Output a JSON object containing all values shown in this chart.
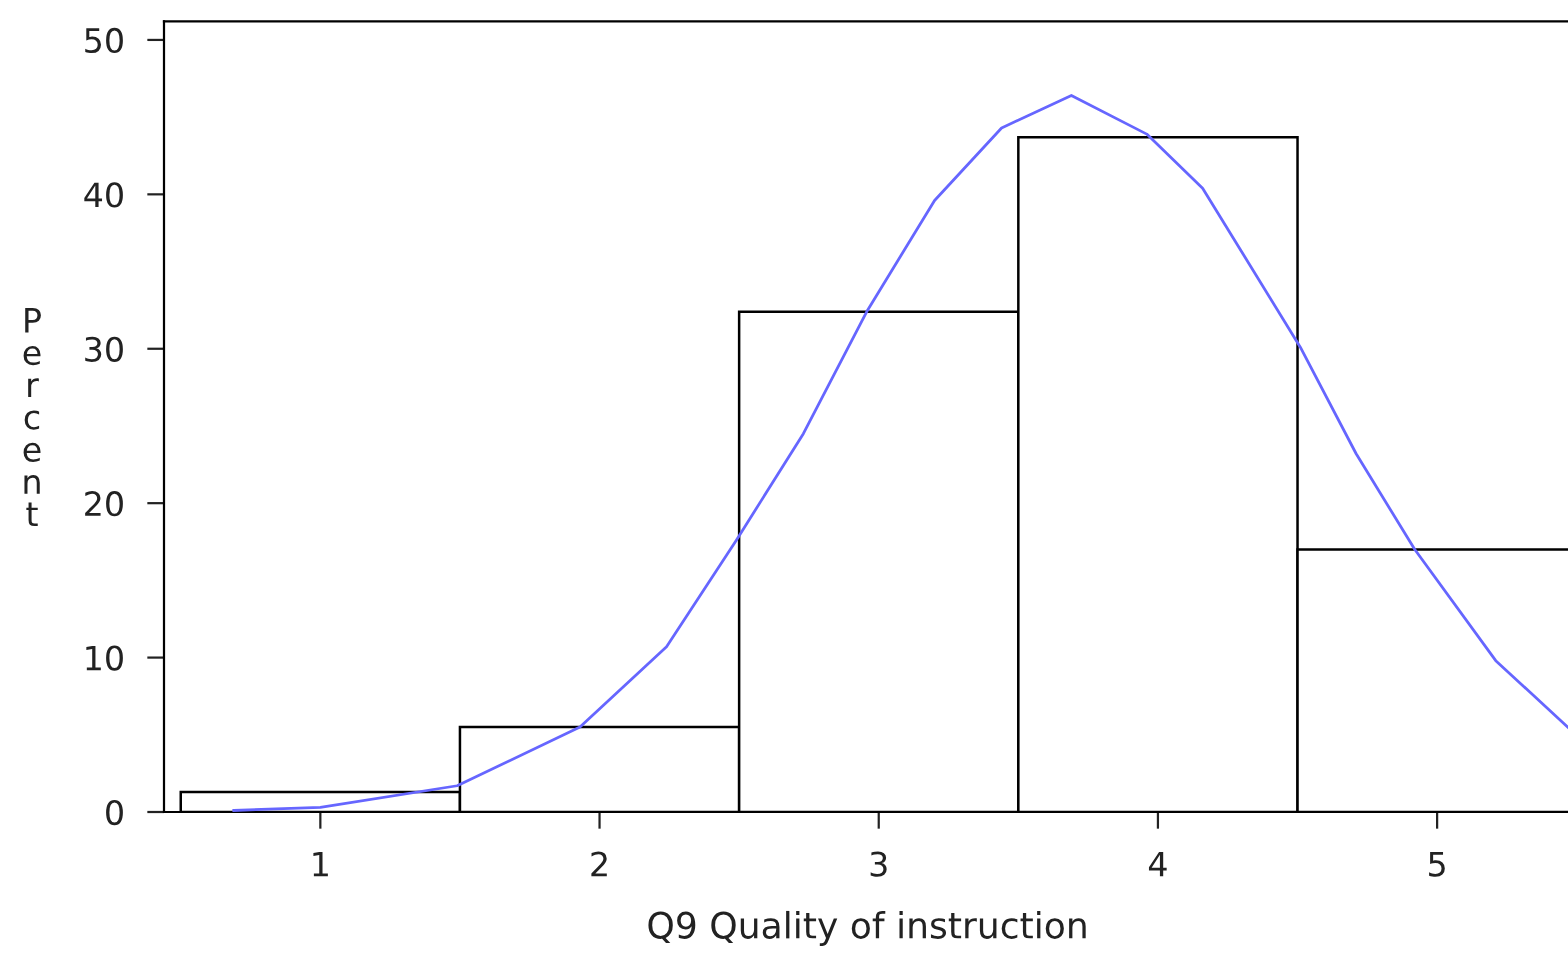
{
  "chart_data": {
    "type": "histogram",
    "xlabel": "Q9 Quality of instruction",
    "ylabel": "Percent",
    "bins": [
      0.5,
      1.5,
      2.5,
      3.5,
      4.5,
      5.5
    ],
    "values": [
      1.3,
      5.5,
      32.4,
      43.7,
      17.0
    ],
    "color": "#ffffff",
    "series": [
      {
        "type": "line",
        "color": "#6666ff",
        "x": [
          0.69,
          1.0,
          1.49,
          1.93,
          2.24,
          2.49,
          2.73,
          2.96,
          3.2,
          3.44,
          3.69,
          3.96,
          4.16,
          4.51,
          4.71,
          4.92,
          5.21,
          5.48
        ],
        "values": [
          0.1,
          0.3,
          1.7,
          5.5,
          10.7,
          17.6,
          24.5,
          32.5,
          39.6,
          44.3,
          46.4,
          43.9,
          40.4,
          30.1,
          23.2,
          17.0,
          9.8,
          5.3
        ]
      }
    ],
    "xlim": [
      0.44,
      5.48
    ],
    "ylim": [
      0,
      51.2
    ],
    "xticks": [
      1,
      2,
      3,
      4,
      5
    ],
    "yticks": [
      0,
      10,
      20,
      30,
      40,
      50
    ],
    "grid": false,
    "legend": false
  }
}
